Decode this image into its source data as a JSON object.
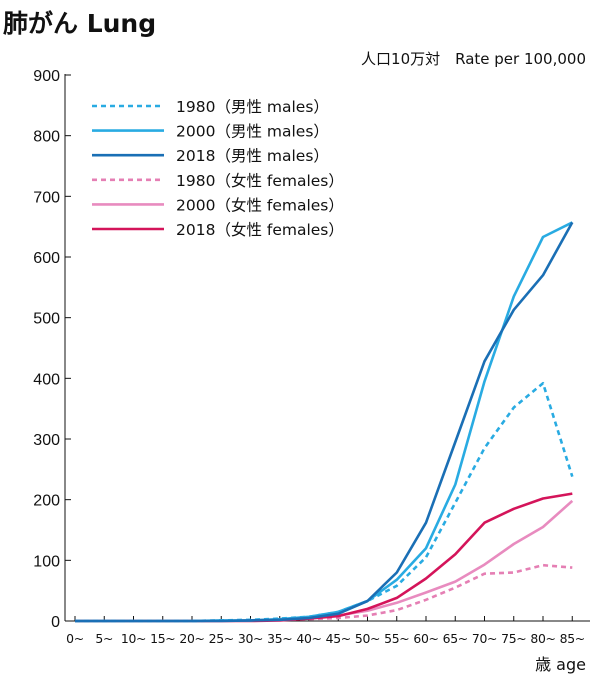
{
  "chart_data": {
    "type": "line",
    "title": "肺がん Lung",
    "unit_label": "人口10万対　Rate per 100,000",
    "xlabel": "歳 age",
    "ylabel": "",
    "ylim": [
      0,
      900
    ],
    "yticks": [
      0,
      100,
      200,
      300,
      400,
      500,
      600,
      700,
      800,
      900
    ],
    "grid": false,
    "legend_position": "top-left",
    "categories": [
      "0~",
      "5~",
      "10~",
      "15~",
      "20~",
      "25~",
      "30~",
      "35~",
      "40~",
      "45~",
      "50~",
      "55~",
      "60~",
      "65~",
      "70~",
      "75~",
      "80~",
      "85~"
    ],
    "series": [
      {
        "name": "1980（男性 males）",
        "color": "#29abe2",
        "dash": true,
        "values": [
          0,
          0,
          0,
          0,
          0,
          1,
          2,
          4,
          7,
          15,
          33,
          58,
          105,
          195,
          285,
          352,
          392,
          238
        ]
      },
      {
        "name": "2000（男性 males）",
        "color": "#29abe2",
        "dash": false,
        "values": [
          0,
          0,
          0,
          0,
          0,
          1,
          1,
          3,
          7,
          15,
          33,
          68,
          120,
          225,
          395,
          535,
          633,
          657
        ]
      },
      {
        "name": "2018（男性 males）",
        "color": "#1a6fb5",
        "dash": false,
        "values": [
          0,
          0,
          0,
          0,
          0,
          0,
          1,
          2,
          5,
          12,
          33,
          80,
          162,
          295,
          428,
          513,
          570,
          657
        ]
      },
      {
        "name": "1980（女性 females）",
        "color": "#e57fb4",
        "dash": true,
        "values": [
          0,
          0,
          0,
          0,
          0,
          1,
          1,
          2,
          3,
          5,
          9,
          18,
          35,
          55,
          78,
          80,
          92,
          88
        ]
      },
      {
        "name": "2000（女性 females）",
        "color": "#e88bbf",
        "dash": false,
        "values": [
          0,
          0,
          0,
          0,
          0,
          0,
          1,
          2,
          5,
          9,
          17,
          30,
          47,
          65,
          93,
          127,
          155,
          198
        ]
      },
      {
        "name": "2018（女性 females）",
        "color": "#d4145a",
        "dash": false,
        "values": [
          0,
          0,
          0,
          0,
          0,
          0,
          0,
          1,
          4,
          8,
          20,
          38,
          70,
          110,
          162,
          185,
          202,
          210
        ]
      }
    ]
  }
}
